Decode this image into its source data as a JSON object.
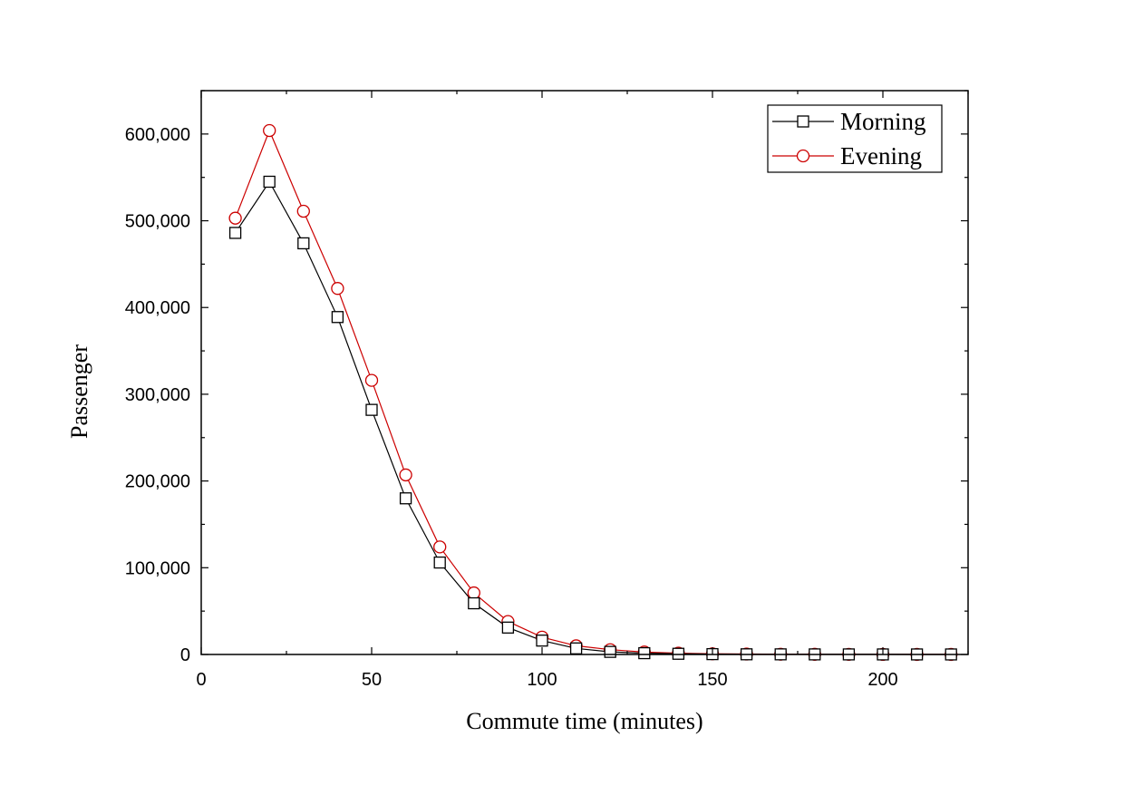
{
  "chart_data": {
    "type": "line",
    "title": "",
    "xlabel": "Commute time (minutes)",
    "ylabel": "Passenger",
    "xlim": [
      0,
      225
    ],
    "ylim": [
      0,
      650000
    ],
    "x_ticks": [
      0,
      50,
      100,
      150,
      200
    ],
    "x_tick_labels": [
      "0",
      "50",
      "100",
      "150",
      "200"
    ],
    "y_ticks": [
      0,
      100000,
      200000,
      300000,
      400000,
      500000,
      600000
    ],
    "y_tick_labels": [
      "0",
      "100,000",
      "200,000",
      "300,000",
      "400,000",
      "500,000",
      "600,000"
    ],
    "grid": false,
    "legend_position": "top-right",
    "x": [
      10,
      20,
      30,
      40,
      50,
      60,
      70,
      80,
      90,
      100,
      110,
      120,
      130,
      140,
      150,
      160,
      170,
      180,
      190,
      200,
      210,
      220
    ],
    "series": [
      {
        "name": "Morning",
        "color": "#000000",
        "marker": "square",
        "values": [
          486000,
          545000,
          474000,
          389000,
          282000,
          180000,
          106000,
          59000,
          31000,
          16000,
          7000,
          3000,
          1500,
          800,
          400,
          200,
          150,
          100,
          80,
          60,
          50,
          40
        ]
      },
      {
        "name": "Evening",
        "color": "#cc0000",
        "marker": "circle",
        "values": [
          503000,
          604000,
          511000,
          422000,
          316000,
          207000,
          124000,
          71000,
          38000,
          20000,
          10000,
          5500,
          2800,
          1500,
          800,
          500,
          300,
          200,
          150,
          100,
          80,
          60
        ]
      }
    ]
  }
}
